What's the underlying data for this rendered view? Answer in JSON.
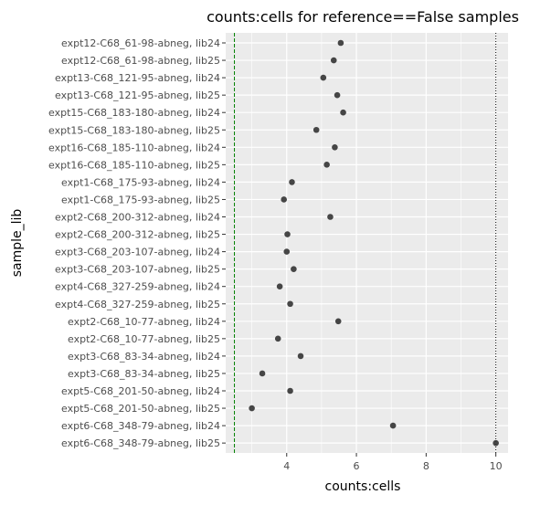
{
  "chart_data": {
    "type": "scatter",
    "title": "counts:cells for reference==False samples",
    "xlabel": "counts:cells",
    "ylabel": "sample_lib",
    "xlim": [
      2.25,
      10.35
    ],
    "x_ticks": [
      4,
      6,
      8,
      10
    ],
    "x_tick_labels": [
      "4",
      "6",
      "8",
      "10"
    ],
    "grid": true,
    "background": "#ebebeb",
    "gridline_color": "#ffffff",
    "point_color": "#333333",
    "categories": [
      "expt12-C68_61-98-abneg, lib24",
      "expt12-C68_61-98-abneg, lib25",
      "expt13-C68_121-95-abneg, lib24",
      "expt13-C68_121-95-abneg, lib25",
      "expt15-C68_183-180-abneg, lib24",
      "expt15-C68_183-180-abneg, lib25",
      "expt16-C68_185-110-abneg, lib24",
      "expt16-C68_185-110-abneg, lib25",
      "expt1-C68_175-93-abneg, lib24",
      "expt1-C68_175-93-abneg, lib25",
      "expt2-C68_200-312-abneg, lib24",
      "expt2-C68_200-312-abneg, lib25",
      "expt3-C68_203-107-abneg, lib24",
      "expt3-C68_203-107-abneg, lib25",
      "expt4-C68_327-259-abneg, lib24",
      "expt4-C68_327-259-abneg, lib25",
      "expt2-C68_10-77-abneg, lib24",
      "expt2-C68_10-77-abneg, lib25",
      "expt3-C68_83-34-abneg, lib24",
      "expt3-C68_83-34-abneg, lib25",
      "expt5-C68_201-50-abneg, lib24",
      "expt5-C68_201-50-abneg, lib25",
      "expt6-C68_348-79-abneg, lib24",
      "expt6-C68_348-79-abneg, lib25"
    ],
    "values": [
      5.55,
      5.35,
      5.05,
      5.45,
      5.62,
      4.85,
      5.38,
      5.15,
      4.15,
      3.92,
      5.25,
      4.02,
      4.0,
      4.2,
      3.8,
      4.1,
      5.48,
      3.75,
      4.4,
      3.3,
      4.1,
      3.0,
      7.05,
      10.0
    ],
    "reference_lines": [
      {
        "x": 2.5,
        "style": "dashed",
        "color": "#008000"
      },
      {
        "x": 10.0,
        "style": "dotted",
        "color": "#000000"
      }
    ]
  }
}
